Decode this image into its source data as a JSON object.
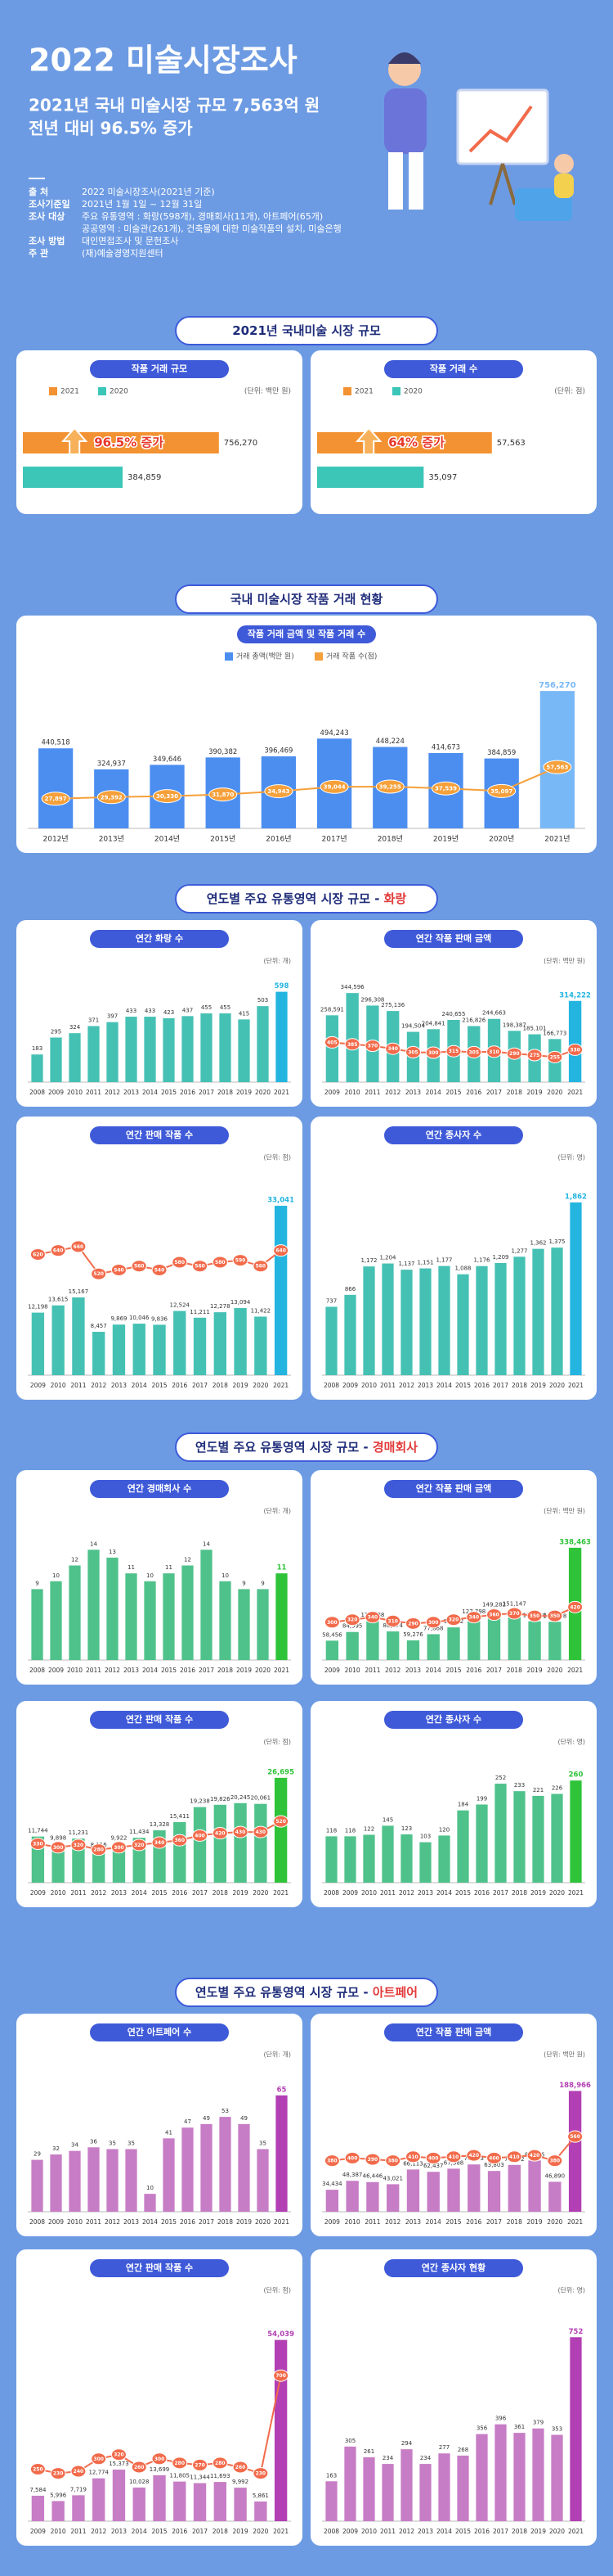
{
  "header": {
    "title": "2022 미술시장조사",
    "subtitle": [
      "2021년 국내 미술시장 규모 7,563억 원",
      "전년 대비 96.5% 증가"
    ]
  },
  "info": [
    {
      "label": "출 처",
      "lines": [
        "2022 미술시장조사(2021년 기준)"
      ]
    },
    {
      "label": "조사기준일",
      "lines": [
        "2021년 1월 1일 ~ 12월 31일"
      ]
    },
    {
      "label": "조사 대상",
      "lines": [
        "주요 유통영역 : 화랑(598개), 경매회사(11개), 아트페어(65개)",
        "공공영역 : 미술관(261개), 건축물에 대한 미술작품의 설치, 미술은행"
      ]
    },
    {
      "label": "조사 방법",
      "lines": [
        "대인면접조사 및 문헌조사"
      ]
    },
    {
      "label": "주 관",
      "lines": [
        "(재)예술경영지원센터"
      ]
    }
  ],
  "sections": [
    {
      "title": "2021년 국내미술 시장 규모"
    },
    {
      "title": "국내 미술시장 작품 거래 현황"
    },
    {
      "title": "연도별 주요 유통영역 시장 규모 - ",
      "highlight": "화랑"
    },
    {
      "title": "연도별 주요 유통영역 시장 규모 - ",
      "highlight": "경매회사"
    },
    {
      "title": "연도별 주요 유통영역 시장 규모 - ",
      "highlight": "아트페어"
    }
  ],
  "chart_data": [
    {
      "type": "hbar",
      "title": "작품 거래 규모",
      "unit": "(단위: 백만 원)",
      "annotation": "96.5% 증가",
      "xlim": [
        0,
        820000
      ],
      "series": [
        {
          "name": "2021",
          "color": "#f39232",
          "values": [
            756270
          ],
          "value_labels": [
            "756,270"
          ]
        },
        {
          "name": "2020",
          "color": "#3cc6b8",
          "values": [
            384859
          ],
          "value_labels": [
            "384,859"
          ]
        }
      ]
    },
    {
      "type": "hbar",
      "title": "작품 거래 수",
      "unit": "(단위: 점)",
      "annotation": "64% 증가",
      "xlim": [
        0,
        70000
      ],
      "series": [
        {
          "name": "2021",
          "color": "#f39232",
          "values": [
            57563
          ],
          "value_labels": [
            "57,563"
          ]
        },
        {
          "name": "2020",
          "color": "#3cc6b8",
          "values": [
            35097
          ],
          "value_labels": [
            "35,097"
          ]
        }
      ]
    },
    {
      "type": "bar",
      "title": "작품 거래 금액 및 작품 거래 수",
      "ylim": [
        0,
        820000
      ],
      "y2lim": [
        0,
        140000
      ],
      "highlight_color": "#79b8f6",
      "categories": [
        "2012년",
        "2013년",
        "2014년",
        "2015년",
        "2016년",
        "2017년",
        "2018년",
        "2019년",
        "2020년",
        "2021년"
      ],
      "series": [
        {
          "name": "거래 총액(백만 원)",
          "color": "#4b8ef0",
          "values": [
            440518,
            324937,
            349646,
            390382,
            396469,
            494243,
            448224,
            414673,
            384859,
            756270
          ],
          "value_labels": [
            "440,518",
            "324,937",
            "349,646",
            "390,382",
            "396,469",
            "494,243",
            "448,224",
            "414,673",
            "384,859",
            "756,270"
          ]
        },
        {
          "name": "거래 작품 수(점)",
          "color": "#f5a03a",
          "axis": "y2",
          "values": [
            27897,
            29392,
            30330,
            31870,
            34943,
            39044,
            39255,
            37539,
            35097,
            57563
          ],
          "value_labels": [
            "27,897",
            "29,392",
            "30,330",
            "31,870",
            "34,943",
            "39,044",
            "39,255",
            "37,539",
            "35,097",
            "57,563"
          ]
        }
      ]
    },
    {
      "type": "bar",
      "title": "연간 화랑 수",
      "unit": "(단위: 개)",
      "ylim": [
        0,
        650
      ],
      "highlight_color": "#23b5e0",
      "categories": [
        "2008",
        "2009",
        "2010",
        "2011",
        "2012",
        "2013",
        "2014",
        "2015",
        "2016",
        "2017",
        "2018",
        "2019",
        "2020",
        "2021"
      ],
      "series": [
        {
          "color": "#45c1b4",
          "values": [
            183,
            295,
            324,
            371,
            397,
            433,
            433,
            423,
            437,
            455,
            455,
            415,
            503,
            598
          ]
        }
      ]
    },
    {
      "type": "bar",
      "title": "연간 작품 판매 금액",
      "unit": "(단위: 백만 원)",
      "ylim": [
        0,
        380000
      ],
      "y2lim": [
        0,
        1000
      ],
      "highlight_color": "#23b5e0",
      "categories": [
        "2009",
        "2010",
        "2011",
        "2012",
        "2013",
        "2014",
        "2015",
        "2016",
        "2017",
        "2018",
        "2019",
        "2020",
        "2021"
      ],
      "series": [
        {
          "color": "#45c1b4",
          "values": [
            258591,
            344596,
            296308,
            275136,
            194504,
            204841,
            240655,
            216826,
            244663,
            198387,
            185101,
            166773,
            314222
          ],
          "value_labels": [
            "258,591",
            "344,596",
            "296,308",
            "275,136",
            "194,504",
            "204,841",
            "240,655",
            "216,826",
            "244,663",
            "198,387",
            "185,101",
            "166,773",
            "314,222"
          ]
        },
        {
          "color": "#f26b4b",
          "axis": "y2",
          "values": [
            405,
            385,
            370,
            340,
            305,
            300,
            315,
            305,
            310,
            290,
            275,
            255,
            330
          ]
        }
      ]
    },
    {
      "type": "bar",
      "title": "연간 판매 작품 수",
      "unit": "(단위: 점)",
      "ylim": [
        0,
        38000
      ],
      "y2lim": [
        0,
        1000
      ],
      "highlight_color": "#23b5e0",
      "categories": [
        "2009",
        "2010",
        "2011",
        "2012",
        "2013",
        "2014",
        "2015",
        "2016",
        "2017",
        "2018",
        "2019",
        "2020",
        "2021"
      ],
      "series": [
        {
          "color": "#45c1b4",
          "values": [
            12198,
            13615,
            15167,
            8457,
            9869,
            10046,
            9836,
            12524,
            11211,
            12278,
            13094,
            11422,
            33041
          ],
          "value_labels": [
            "12,198",
            "13,615",
            "15,167",
            "8,457",
            "9,869",
            "10,046",
            "9,836",
            "12,524",
            "11,211",
            "12,278",
            "13,094",
            "11,422",
            "33,041"
          ]
        },
        {
          "color": "#f26b4b",
          "axis": "y2",
          "values": [
            620,
            640,
            660,
            520,
            540,
            560,
            540,
            580,
            560,
            580,
            590,
            560,
            640
          ]
        }
      ]
    },
    {
      "type": "bar",
      "title": "연간 종사자 수",
      "unit": "(단위: 명)",
      "ylim": [
        0,
        2100
      ],
      "highlight_color": "#23b5e0",
      "categories": [
        "2008",
        "2009",
        "2010",
        "2011",
        "2012",
        "2013",
        "2014",
        "2015",
        "2016",
        "2017",
        "2018",
        "2019",
        "2020",
        "2021"
      ],
      "series": [
        {
          "color": "#45c1b4",
          "values": [
            737,
            866,
            1172,
            1204,
            1137,
            1151,
            1177,
            1088,
            1176,
            1209,
            1277,
            1362,
            1375,
            1862
          ],
          "value_labels": [
            "737",
            "866",
            "1,172",
            "1,204",
            "1,137",
            "1,151",
            "1,177",
            "1,088",
            "1,176",
            "1,209",
            "1,277",
            "1,362",
            "1,375",
            "1,862"
          ]
        }
      ]
    },
    {
      "type": "bar",
      "title": "연간 경매회사 수",
      "unit": "(단위: 개)",
      "ylim": [
        0,
        16
      ],
      "highlight_color": "#2fc33a",
      "categories": [
        "2008",
        "2009",
        "2010",
        "2011",
        "2012",
        "2013",
        "2014",
        "2015",
        "2016",
        "2017",
        "2018",
        "2019",
        "2020",
        "2021"
      ],
      "series": [
        {
          "color": "#4fc28b",
          "values": [
            9,
            10,
            12,
            14,
            13,
            11,
            10,
            11,
            12,
            14,
            10,
            9,
            9,
            11
          ]
        }
      ]
    },
    {
      "type": "bar",
      "title": "연간 작품 판매 금액",
      "unit": "(단위: 백만 원)",
      "ylim": [
        0,
        380000
      ],
      "y2lim": [
        0,
        1000
      ],
      "highlight_color": "#2fc33a",
      "categories": [
        "2009",
        "2010",
        "2011",
        "2012",
        "2013",
        "2014",
        "2015",
        "2016",
        "2017",
        "2018",
        "2019",
        "2020",
        "2021"
      ],
      "series": [
        {
          "color": "#4fc28b",
          "values": [
            58456,
            84595,
            118238,
            86274,
            59276,
            77868,
            98472,
            127798,
            149282,
            151147,
            116820,
            115298,
            338463
          ],
          "value_labels": [
            "58,456",
            "84,595",
            "118,238",
            "86,274",
            "59,276",
            "77,868",
            "98,472",
            "127,798",
            "149,282",
            "151,147",
            "116,820",
            "115,298",
            "338,463"
          ]
        },
        {
          "color": "#f26b4b",
          "axis": "y2",
          "values": [
            300,
            320,
            340,
            310,
            290,
            300,
            320,
            340,
            360,
            370,
            350,
            350,
            420
          ]
        }
      ]
    },
    {
      "type": "bar",
      "title": "연간 판매 작품 수",
      "unit": "(단위: 점)",
      "ylim": [
        0,
        30000
      ],
      "y2lim": [
        0,
        1000
      ],
      "highlight_color": "#2fc33a",
      "categories": [
        "2009",
        "2010",
        "2011",
        "2012",
        "2013",
        "2014",
        "2015",
        "2016",
        "2017",
        "2018",
        "2019",
        "2020",
        "2021"
      ],
      "series": [
        {
          "color": "#4fc28b",
          "values": [
            11744,
            9898,
            11231,
            8116,
            9922,
            11434,
            13328,
            15411,
            19238,
            19826,
            20245,
            20061,
            26695
          ],
          "value_labels": [
            "11,744",
            "9,898",
            "11,231",
            "8,116",
            "9,922",
            "11,434",
            "13,328",
            "15,411",
            "19,238",
            "19,826",
            "20,245",
            "20,061",
            "26,695"
          ]
        },
        {
          "color": "#f26b4b",
          "axis": "y2",
          "values": [
            330,
            300,
            320,
            280,
            300,
            320,
            340,
            360,
            400,
            420,
            430,
            430,
            520
          ]
        }
      ]
    },
    {
      "type": "bar",
      "title": "연간 종사자 수",
      "unit": "(단위: 명)",
      "ylim": [
        0,
        300
      ],
      "highlight_color": "#2fc33a",
      "categories": [
        "2008",
        "2009",
        "2010",
        "2011",
        "2012",
        "2013",
        "2014",
        "2015",
        "2016",
        "2017",
        "2018",
        "2019",
        "2020",
        "2021"
      ],
      "series": [
        {
          "color": "#4fc28b",
          "values": [
            118,
            118,
            122,
            145,
            123,
            103,
            120,
            184,
            199,
            252,
            233,
            221,
            226,
            260
          ]
        }
      ]
    },
    {
      "type": "bar",
      "title": "연간 아트페어 수",
      "unit": "(단위: 개)",
      "ylim": [
        0,
        75
      ],
      "highlight_color": "#b23fb3",
      "categories": [
        "2008",
        "2009",
        "2010",
        "2011",
        "2012",
        "2013",
        "2014",
        "2015",
        "2016",
        "2017",
        "2018",
        "2019",
        "2020",
        "2021"
      ],
      "series": [
        {
          "color": "#c77dc6",
          "values": [
            29,
            32,
            34,
            36,
            35,
            35,
            10,
            41,
            47,
            49,
            53,
            49,
            35,
            65
          ]
        }
      ]
    },
    {
      "type": "bar",
      "title": "연간 작품 판매 금액",
      "unit": "(단위: 백만 원)",
      "ylim": [
        0,
        210000
      ],
      "y2lim": [
        0,
        1000
      ],
      "highlight_color": "#b23fb3",
      "categories": [
        "2009",
        "2010",
        "2011",
        "2012",
        "2013",
        "2014",
        "2015",
        "2016",
        "2017",
        "2018",
        "2019",
        "2020",
        "2021"
      ],
      "series": [
        {
          "color": "#c77dc6",
          "values": [
            34434,
            48387,
            46446,
            43021,
            66113,
            62437,
            67388,
            73993,
            63803,
            73292,
            80256,
            46890,
            188966
          ],
          "value_labels": [
            "34,434",
            "48,387",
            "46,446",
            "43,021",
            "66,113",
            "62,437",
            "67,388",
            "73,993",
            "63,803",
            "73,292",
            "80,256",
            "46,890",
            "188,966"
          ]
        },
        {
          "color": "#f26b4b",
          "axis": "y2",
          "values": [
            380,
            400,
            390,
            380,
            410,
            400,
            410,
            420,
            400,
            410,
            420,
            380,
            560
          ]
        }
      ]
    },
    {
      "type": "bar",
      "title": "연간 판매 작품 수",
      "unit": "(단위: 점)",
      "ylim": [
        0,
        62000
      ],
      "y2lim": [
        0,
        1000
      ],
      "highlight_color": "#b23fb3",
      "categories": [
        "2009",
        "2010",
        "2011",
        "2012",
        "2013",
        "2014",
        "2015",
        "2016",
        "2017",
        "2018",
        "2019",
        "2020",
        "2021"
      ],
      "series": [
        {
          "color": "#c77dc6",
          "values": [
            7584,
            5996,
            7719,
            12774,
            15373,
            10028,
            13699,
            11805,
            11344,
            11693,
            9992,
            5861,
            54039
          ],
          "value_labels": [
            "7,584",
            "5,996",
            "7,719",
            "12,774",
            "15,373",
            "10,028",
            "13,699",
            "11,805",
            "11,344",
            "11,693",
            "9,992",
            "5,861",
            "54,039"
          ]
        },
        {
          "color": "#f26b4b",
          "axis": "y2",
          "values": [
            250,
            230,
            240,
            300,
            320,
            260,
            300,
            280,
            270,
            280,
            260,
            230,
            700
          ]
        }
      ]
    },
    {
      "type": "bar",
      "title": "연간 종사자 현황",
      "unit": "(단위: 명)",
      "ylim": [
        0,
        850
      ],
      "highlight_color": "#b23fb3",
      "categories": [
        "2008",
        "2009",
        "2010",
        "2011",
        "2012",
        "2013",
        "2014",
        "2015",
        "2016",
        "2017",
        "2018",
        "2019",
        "2020",
        "2021"
      ],
      "series": [
        {
          "color": "#c77dc6",
          "values": [
            163,
            305,
            261,
            234,
            294,
            234,
            277,
            268,
            356,
            396,
            361,
            379,
            353,
            752
          ]
        }
      ]
    }
  ]
}
